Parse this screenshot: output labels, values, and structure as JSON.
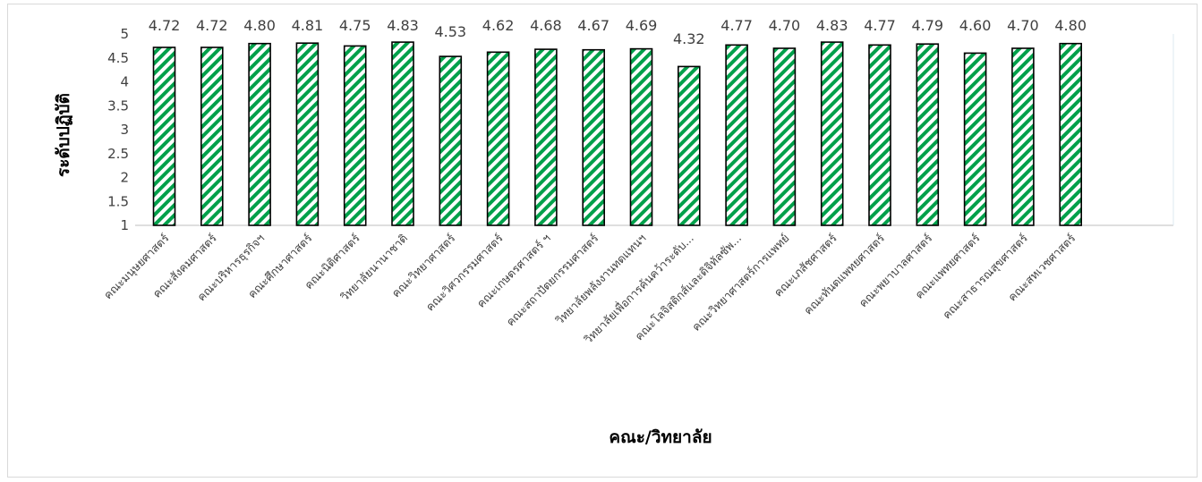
{
  "chart_data": {
    "type": "bar",
    "title": "",
    "xlabel": "คณะ/วิทยาลัย",
    "ylabel": "ระดับปฏิบัติ",
    "ylim": [
      1,
      5
    ],
    "yticks": [
      "1",
      "1.5",
      "2",
      "2.5",
      "3",
      "3.5",
      "4",
      "4.5",
      "5"
    ],
    "categories": [
      "คณะมนุษยศาสตร์",
      "คณะสังคมศาสตร์",
      "คณะบริหารธุรกิจฯ",
      "คณะศึกษาศาสตร์",
      "คณะนิติศาสตร์",
      "วิทยาลัยนานาชาติ",
      "คณะวิทยาศาสตร์",
      "คณะวิศวกรรมศาสตร์",
      "คณะเกษตรศาสตร์ ฯ",
      "คณะสถาปัตยกรรมศาสตร์",
      "วิทยาลัยพลังงานทดแทนฯ",
      "วิทยาลัยเพื่อการค้นคว้าระดับ...",
      "คณะโลจิสติกส์และดิจิทัลซัพ...",
      "คณะวิทยาศาสตร์การแพทย์",
      "คณะเภสัชศาสตร์",
      "คณะทันตแพทยศาสตร์",
      "คณะพยาบาลศาสตร์",
      "คณะแพทยศาสตร์",
      "คณะสาธารณสุขศาสตร์",
      "คณะสหเวชศาสตร์"
    ],
    "values": [
      4.72,
      4.72,
      4.8,
      4.81,
      4.75,
      4.83,
      4.53,
      4.62,
      4.68,
      4.67,
      4.69,
      4.32,
      4.77,
      4.7,
      4.83,
      4.77,
      4.79,
      4.6,
      4.7,
      4.8
    ],
    "data_labels": [
      "4.72",
      "4.72",
      "4.80",
      "4.81",
      "4.75",
      "4.83",
      "4.53",
      "4.62",
      "4.68",
      "4.67",
      "4.69",
      "4.32",
      "4.77",
      "4.70",
      "4.83",
      "4.77",
      "4.79",
      "4.60",
      "4.70",
      "4.80"
    ],
    "grid": false,
    "legend": "none",
    "bar_fill": "#00a04a",
    "bar_stripe": "#ffffff",
    "bar_outline": "#000000"
  }
}
